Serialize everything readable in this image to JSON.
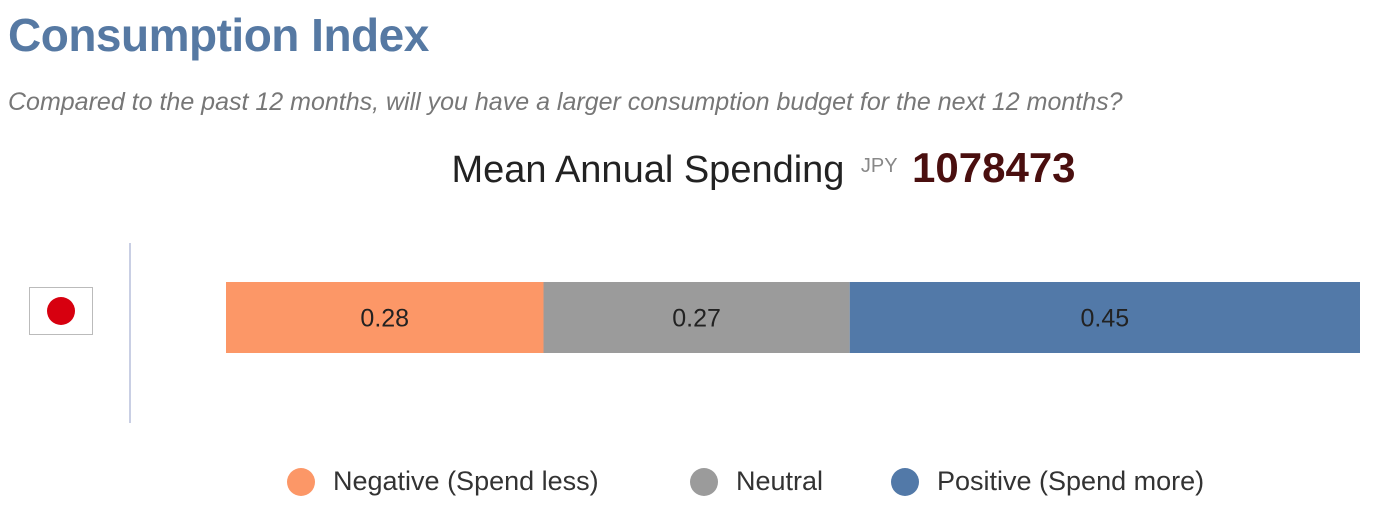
{
  "header": {
    "title": "Consumption Index",
    "subtitle": "Compared to the past 12 months, will you have a larger consumption budget for the next 12 months?"
  },
  "mean": {
    "label": "Mean Annual Spending",
    "currency": "JPY",
    "value": "1078473"
  },
  "country": {
    "flag_icon": "japan-flag-icon"
  },
  "chart_data": {
    "type": "bar",
    "orientation": "horizontal",
    "stacked": true,
    "title": "",
    "xlabel": "",
    "ylabel": "",
    "xlim": [
      0,
      1
    ],
    "grid": false,
    "legend_position": "bottom",
    "categories": [
      "Japan"
    ],
    "series": [
      {
        "name": "Negative (Spend less)",
        "values": [
          0.28
        ],
        "label": "0.28",
        "color": "#fc9767"
      },
      {
        "name": "Neutral",
        "values": [
          0.27
        ],
        "label": "0.27",
        "color": "#9b9b9b"
      },
      {
        "name": "Positive (Spend more)",
        "values": [
          0.45
        ],
        "label": "0.45",
        "color": "#5279a8"
      }
    ]
  }
}
